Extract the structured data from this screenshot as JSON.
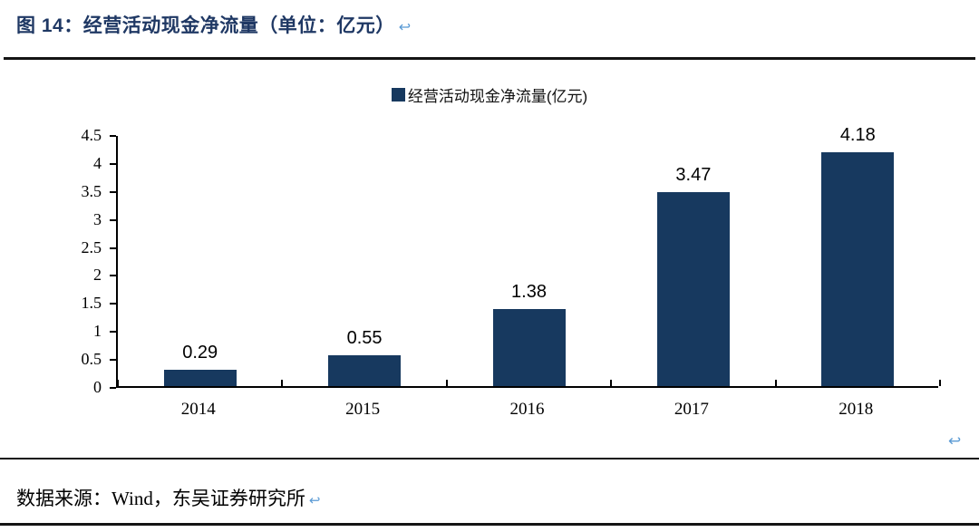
{
  "header": {
    "title": "图 14：经营活动现金净流量（单位：亿元）",
    "return_mark": "↩"
  },
  "chart_data": {
    "type": "bar",
    "title": "经营活动现金净流量(亿元)",
    "legend": [
      "经营活动现金净流量(亿元)"
    ],
    "legend_position": "top-center",
    "categories": [
      "2014",
      "2015",
      "2016",
      "2017",
      "2018"
    ],
    "values": [
      0.29,
      0.55,
      1.38,
      3.47,
      4.18
    ],
    "data_labels": [
      "0.29",
      "0.55",
      "1.38",
      "3.47",
      "4.18"
    ],
    "xlabel": "",
    "ylabel": "",
    "ylim": [
      0,
      4.5
    ],
    "ytick_step": 0.5,
    "yticks": [
      "4.5",
      "4",
      "3.5",
      "3",
      "2.5",
      "2",
      "1.5",
      "1",
      "0.5",
      "0"
    ],
    "grid": false,
    "bar_color": "#17395F"
  },
  "footer": {
    "source": "数据来源：Wind，东吴证券研究所",
    "return_mark": "↩"
  },
  "colors": {
    "title_text": "#1F3864",
    "bar": "#17395F",
    "return_mark": "#5B9BD5",
    "rule": "#141414",
    "axis": "#000000"
  }
}
